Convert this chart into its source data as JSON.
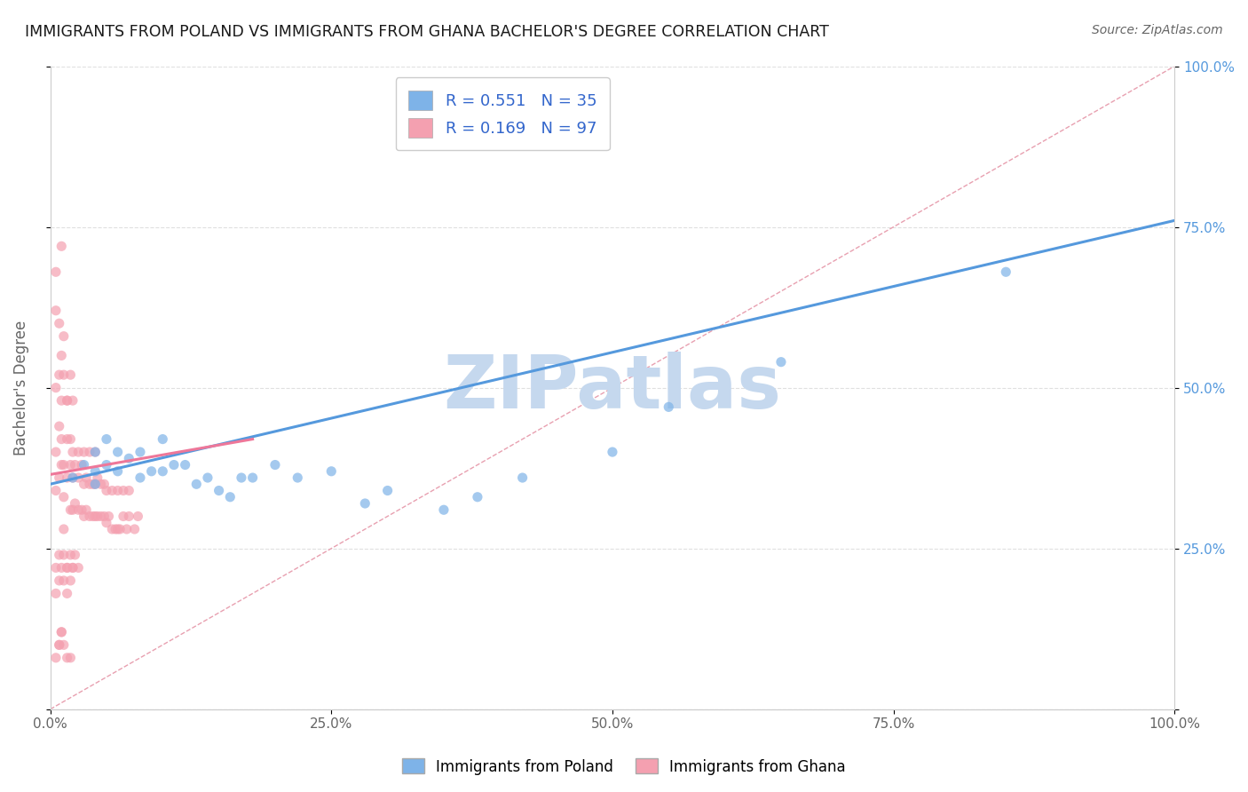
{
  "title": "IMMIGRANTS FROM POLAND VS IMMIGRANTS FROM GHANA BACHELOR'S DEGREE CORRELATION CHART",
  "source_text": "Source: ZipAtlas.com",
  "ylabel": "Bachelor's Degree",
  "xlim": [
    0.0,
    1.0
  ],
  "ylim": [
    0.0,
    1.0
  ],
  "xtick_labels": [
    "0.0%",
    "",
    "25.0%",
    "",
    "50.0%",
    "",
    "75.0%",
    "",
    "100.0%"
  ],
  "xtick_vals": [
    0.0,
    0.125,
    0.25,
    0.375,
    0.5,
    0.625,
    0.75,
    0.875,
    1.0
  ],
  "ytick_labels": [
    "100.0%",
    "75.0%",
    "50.0%",
    "25.0%",
    ""
  ],
  "ytick_vals": [
    1.0,
    0.75,
    0.5,
    0.25,
    0.0
  ],
  "poland_color": "#7EB3E8",
  "ghana_color": "#F4A0B0",
  "poland_R": 0.551,
  "poland_N": 35,
  "ghana_R": 0.169,
  "ghana_N": 97,
  "legend_label_poland": "Immigrants from Poland",
  "legend_label_ghana": "Immigrants from Ghana",
  "watermark": "ZIPatlas",
  "watermark_color": "#C5D8EE",
  "poland_scatter_x": [
    0.02,
    0.03,
    0.04,
    0.04,
    0.05,
    0.05,
    0.06,
    0.07,
    0.08,
    0.08,
    0.09,
    0.1,
    0.1,
    0.11,
    0.12,
    0.13,
    0.14,
    0.15,
    0.16,
    0.17,
    0.18,
    0.2,
    0.22,
    0.25,
    0.28,
    0.3,
    0.35,
    0.38,
    0.42,
    0.5,
    0.55,
    0.65,
    0.85,
    0.04,
    0.06
  ],
  "poland_scatter_y": [
    0.36,
    0.38,
    0.35,
    0.4,
    0.38,
    0.42,
    0.37,
    0.39,
    0.36,
    0.4,
    0.37,
    0.37,
    0.42,
    0.38,
    0.38,
    0.35,
    0.36,
    0.34,
    0.33,
    0.36,
    0.36,
    0.38,
    0.36,
    0.37,
    0.32,
    0.34,
    0.31,
    0.33,
    0.36,
    0.4,
    0.47,
    0.54,
    0.68,
    0.37,
    0.4
  ],
  "ghana_scatter_x": [
    0.005,
    0.005,
    0.008,
    0.008,
    0.01,
    0.01,
    0.012,
    0.012,
    0.012,
    0.015,
    0.015,
    0.015,
    0.018,
    0.018,
    0.018,
    0.02,
    0.02,
    0.02,
    0.022,
    0.022,
    0.025,
    0.025,
    0.025,
    0.028,
    0.028,
    0.03,
    0.03,
    0.03,
    0.032,
    0.032,
    0.035,
    0.035,
    0.035,
    0.038,
    0.038,
    0.04,
    0.04,
    0.04,
    0.042,
    0.042,
    0.045,
    0.045,
    0.048,
    0.048,
    0.05,
    0.05,
    0.052,
    0.055,
    0.055,
    0.058,
    0.06,
    0.06,
    0.062,
    0.065,
    0.065,
    0.068,
    0.07,
    0.07,
    0.075,
    0.078,
    0.005,
    0.008,
    0.01,
    0.012,
    0.015,
    0.018,
    0.02,
    0.022,
    0.025,
    0.005,
    0.008,
    0.01,
    0.012,
    0.015,
    0.018,
    0.02,
    0.005,
    0.008,
    0.01,
    0.012,
    0.015,
    0.005,
    0.008,
    0.01,
    0.005,
    0.008,
    0.01,
    0.012,
    0.015,
    0.018,
    0.005,
    0.008,
    0.01,
    0.012,
    0.015,
    0.018,
    0.02
  ],
  "ghana_scatter_y": [
    0.34,
    0.4,
    0.36,
    0.44,
    0.38,
    0.42,
    0.33,
    0.38,
    0.28,
    0.42,
    0.36,
    0.48,
    0.31,
    0.38,
    0.42,
    0.31,
    0.36,
    0.4,
    0.32,
    0.38,
    0.31,
    0.36,
    0.4,
    0.31,
    0.38,
    0.3,
    0.35,
    0.4,
    0.31,
    0.36,
    0.3,
    0.35,
    0.4,
    0.3,
    0.35,
    0.3,
    0.35,
    0.4,
    0.3,
    0.36,
    0.3,
    0.35,
    0.3,
    0.35,
    0.29,
    0.34,
    0.3,
    0.28,
    0.34,
    0.28,
    0.28,
    0.34,
    0.28,
    0.3,
    0.34,
    0.28,
    0.3,
    0.34,
    0.28,
    0.3,
    0.22,
    0.24,
    0.22,
    0.24,
    0.22,
    0.24,
    0.22,
    0.24,
    0.22,
    0.5,
    0.52,
    0.48,
    0.52,
    0.48,
    0.52,
    0.48,
    0.62,
    0.6,
    0.55,
    0.58,
    0.18,
    0.18,
    0.2,
    0.72,
    0.68,
    0.1,
    0.12,
    0.1,
    0.08,
    0.08,
    0.08,
    0.1,
    0.12,
    0.2,
    0.22,
    0.2,
    0.22
  ],
  "title_color": "#1a1a1a",
  "title_fontsize": 12.5,
  "axis_label_color": "#666666",
  "tick_label_color": "#666666",
  "grid_color": "#DDDDDD",
  "refline_color": "#E8A0B0",
  "poland_line_color": "#5599DD",
  "ghana_line_color": "#EE7799",
  "legend_R_color": "#3366CC",
  "poland_line_x0": 0.0,
  "poland_line_y0": 0.35,
  "poland_line_x1": 1.0,
  "poland_line_y1": 0.76,
  "ghana_line_x0": 0.0,
  "ghana_line_y0": 0.365,
  "ghana_line_x1": 0.18,
  "ghana_line_y1": 0.42
}
